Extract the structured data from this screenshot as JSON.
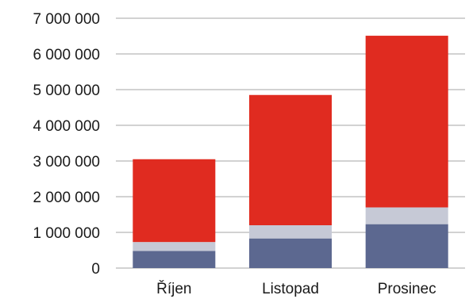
{
  "chart_data": {
    "type": "bar",
    "stacked": true,
    "categories": [
      "Říjen",
      "Listopad",
      "Prosinec"
    ],
    "series": [
      {
        "color": "#5c6890",
        "values": [
          480000,
          830000,
          1230000
        ]
      },
      {
        "color": "#c6c9d6",
        "values": [
          250000,
          370000,
          470000
        ]
      },
      {
        "color": "#e02b20",
        "values": [
          2320000,
          3650000,
          4810000
        ]
      }
    ],
    "y_ticks": [
      "0",
      "1 000 000",
      "2 000 000",
      "3 000 000",
      "4 000 000",
      "5 000 000",
      "6 000 000",
      "7 000 000"
    ],
    "ylim": [
      0,
      7000000
    ],
    "grid": "horizontal",
    "gridline_color": "#a6a6a6",
    "title": "",
    "xlabel": "",
    "ylabel": ""
  }
}
